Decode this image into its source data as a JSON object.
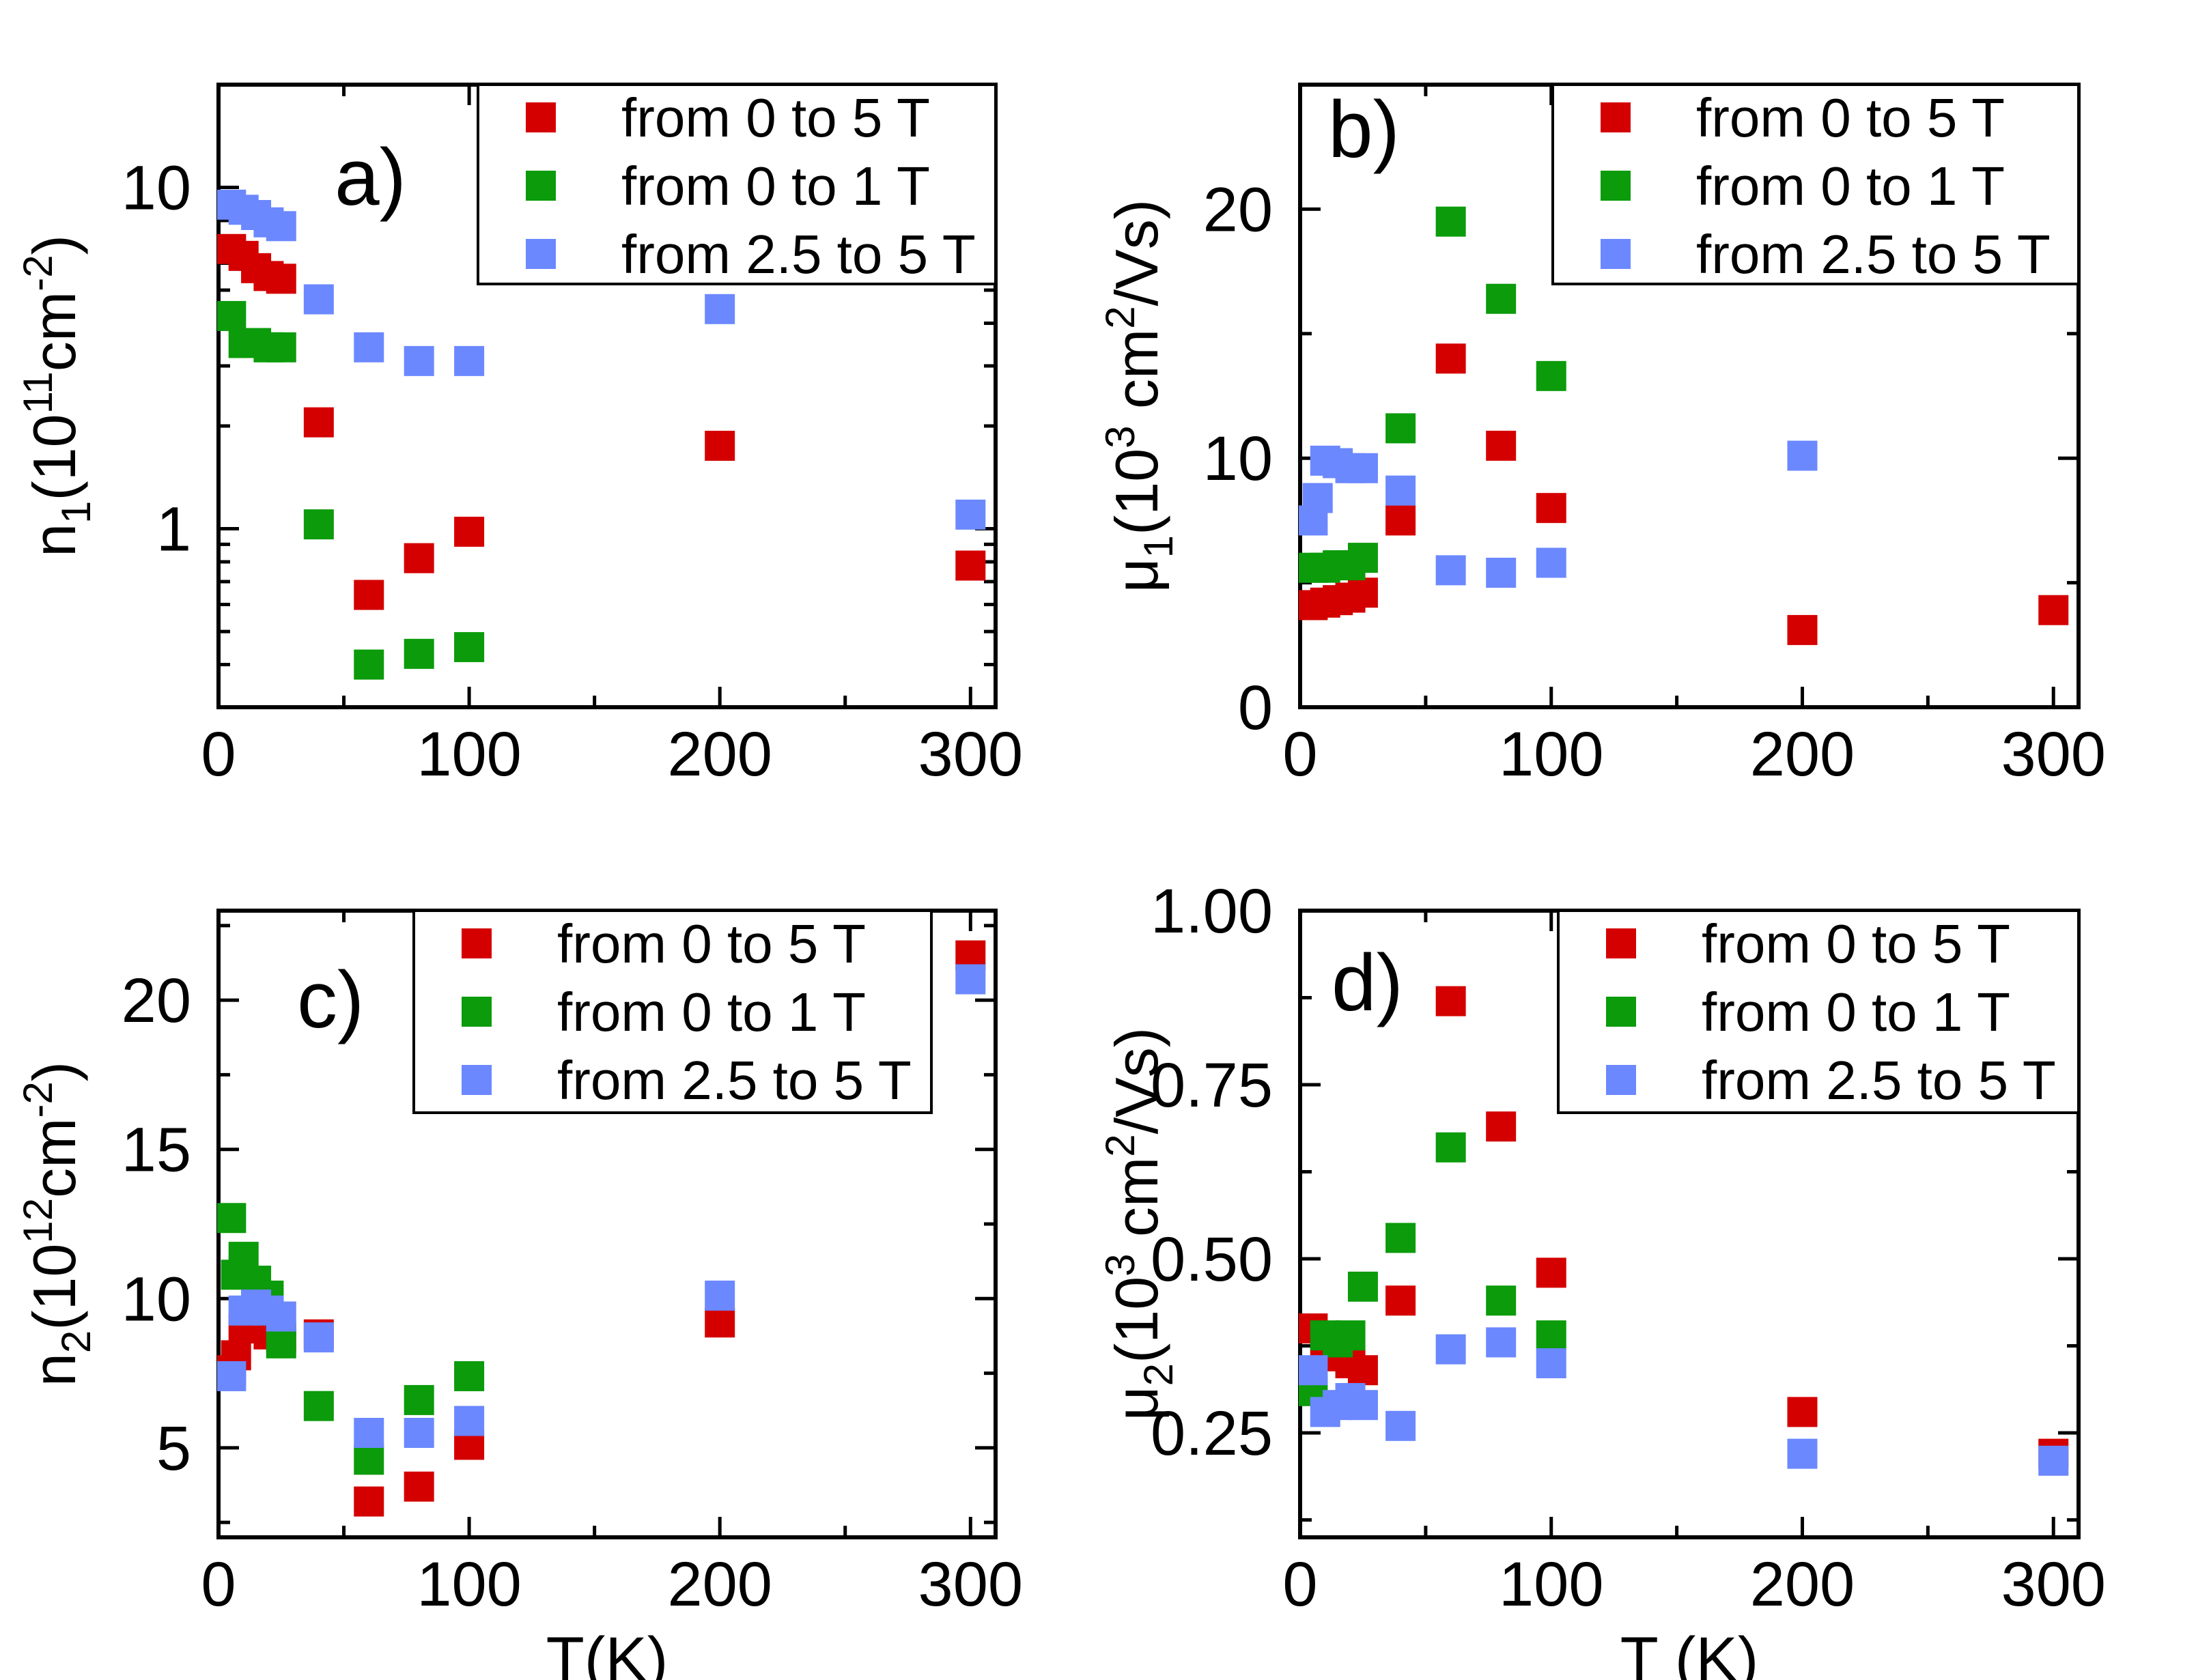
{
  "colors": {
    "from_0_to_5T": "#d40000",
    "from_0_to_1T": "#0b9b0b",
    "from_2_5_to_5T": "#6b88ff",
    "axis": "#000000"
  },
  "chart_data": [
    {
      "panel": "a",
      "type": "scatter",
      "panel_label": "a)",
      "ylabel": {
        "base": "n",
        "sub": "1",
        "pre": "(10",
        "sup": "11",
        "mid": "cm",
        "sup2": "-2",
        "post": ")"
      },
      "xlabel": "",
      "xscale": "linear",
      "yscale": "log",
      "xlim": [
        0,
        310
      ],
      "ylim": [
        0.3,
        20
      ],
      "xticks": [
        0,
        100,
        200,
        300
      ],
      "xtick_labels": [
        "0",
        "100",
        "200",
        "300"
      ],
      "yticks": [
        1,
        10
      ],
      "ytick_labels": [
        "1",
        "10"
      ],
      "legend_position": "top-right",
      "series": [
        {
          "name": "from 0 to 5 T",
          "color_key": "from_0_to_5T",
          "x": [
            5,
            10,
            15,
            20,
            25,
            40,
            60,
            80,
            100,
            200,
            300
          ],
          "y": [
            6.6,
            6.3,
            5.8,
            5.5,
            5.4,
            2.05,
            0.64,
            0.82,
            0.98,
            1.75,
            0.78
          ]
        },
        {
          "name": "from 0 to 1 T",
          "color_key": "from_0_to_1T",
          "x": [
            5,
            10,
            15,
            20,
            25,
            40,
            60,
            80,
            100
          ],
          "y": [
            4.2,
            3.5,
            3.5,
            3.4,
            3.4,
            1.03,
            0.4,
            0.43,
            0.45
          ]
        },
        {
          "name": "from 2.5 to 5 T",
          "color_key": "from_2_5_to_5T",
          "x": [
            5,
            10,
            15,
            20,
            25,
            40,
            60,
            80,
            100,
            200,
            300
          ],
          "y": [
            8.9,
            8.6,
            8.3,
            7.9,
            7.7,
            4.7,
            3.4,
            3.1,
            3.1,
            4.4,
            1.1
          ]
        }
      ]
    },
    {
      "panel": "b",
      "type": "scatter",
      "panel_label": "b)",
      "ylabel": {
        "base": "μ",
        "sub": "1",
        "pre": "(10",
        "sup": "3",
        "mid": " cm",
        "sup2": "2",
        "post": "/Vs)"
      },
      "xlabel": "",
      "xscale": "linear",
      "yscale": "linear",
      "xlim": [
        0,
        310
      ],
      "ylim": [
        0,
        25
      ],
      "xticks": [
        0,
        100,
        200,
        300
      ],
      "xtick_labels": [
        "0",
        "100",
        "200",
        "300"
      ],
      "yticks": [
        0,
        10,
        20
      ],
      "ytick_labels": [
        "0",
        "10",
        "20"
      ],
      "yminor": [
        5,
        15
      ],
      "legend_position": "top-right",
      "series": [
        {
          "name": "from 0 to 5 T",
          "color_key": "from_0_to_5T",
          "x": [
            5,
            10,
            15,
            20,
            25,
            40,
            60,
            80,
            100,
            200,
            300
          ],
          "y": [
            4.1,
            4.2,
            4.3,
            4.4,
            4.6,
            7.5,
            14.0,
            10.5,
            8.0,
            3.1,
            3.9
          ]
        },
        {
          "name": "from 0 to 1 T",
          "color_key": "from_0_to_1T",
          "x": [
            5,
            10,
            15,
            20,
            25,
            40,
            60,
            80,
            100
          ],
          "y": [
            5.6,
            5.6,
            5.7,
            5.7,
            6.0,
            11.2,
            19.5,
            16.4,
            13.3
          ]
        },
        {
          "name": "from 2.5 to 5 T",
          "color_key": "from_2_5_to_5T",
          "x": [
            5,
            7,
            10,
            15,
            20,
            25,
            40,
            60,
            80,
            100,
            200
          ],
          "y": [
            7.5,
            8.4,
            9.9,
            9.8,
            9.6,
            9.6,
            8.7,
            5.5,
            5.4,
            5.8,
            10.1
          ]
        }
      ]
    },
    {
      "panel": "c",
      "type": "scatter",
      "panel_label": "c)",
      "ylabel": {
        "base": "n",
        "sub": "2",
        "pre": "(10",
        "sup": "12",
        "mid": "cm",
        "sup2": "-2",
        "post": ")"
      },
      "xlabel": "T(K)",
      "xscale": "linear",
      "yscale": "linear",
      "xlim": [
        0,
        310
      ],
      "ylim": [
        2,
        23
      ],
      "xticks": [
        0,
        100,
        200,
        300
      ],
      "xtick_labels": [
        "0",
        "100",
        "200",
        "300"
      ],
      "yticks": [
        5,
        10,
        15,
        20
      ],
      "ytick_labels": [
        "5",
        "10",
        "15",
        "20"
      ],
      "legend_position": "top-right",
      "series": [
        {
          "name": "from 0 to 5 T",
          "color_key": "from_0_to_5T",
          "x": [
            5,
            7,
            10,
            15,
            20,
            25,
            40,
            60,
            80,
            100,
            200,
            300
          ],
          "y": [
            7.6,
            8.1,
            9.0,
            9.0,
            8.8,
            8.7,
            8.8,
            3.2,
            3.7,
            5.1,
            9.2,
            21.5
          ]
        },
        {
          "name": "from 0 to 1 T",
          "color_key": "from_0_to_1T",
          "x": [
            5,
            7,
            10,
            15,
            20,
            25,
            40,
            60,
            80,
            100
          ],
          "y": [
            12.7,
            10.8,
            11.4,
            10.6,
            10.1,
            8.5,
            6.4,
            4.6,
            6.6,
            7.4
          ]
        },
        {
          "name": "from 2.5 to 5 T",
          "color_key": "from_2_5_to_5T",
          "x": [
            5,
            10,
            15,
            20,
            25,
            40,
            60,
            80,
            100,
            200,
            300
          ],
          "y": [
            7.4,
            9.6,
            9.8,
            9.6,
            9.4,
            8.7,
            5.5,
            5.5,
            5.9,
            10.1,
            20.7
          ]
        }
      ]
    },
    {
      "panel": "d",
      "type": "scatter",
      "panel_label": "d)",
      "ylabel": {
        "base": "μ",
        "sub": "2",
        "pre": "(10",
        "sup": "3",
        "mid": " cm",
        "sup2": "2",
        "post": "/Vs)"
      },
      "xlabel": "T (K)",
      "xscale": "linear",
      "yscale": "linear",
      "xlim": [
        0,
        310
      ],
      "ylim": [
        0.1,
        1.0
      ],
      "xticks": [
        0,
        100,
        200,
        300
      ],
      "xtick_labels": [
        "0",
        "100",
        "200",
        "300"
      ],
      "yticks": [
        0.25,
        0.5,
        0.75,
        1.0
      ],
      "ytick_labels": [
        "0.25",
        "0.50",
        "0.75",
        "1.00"
      ],
      "legend_position": "top-right",
      "series": [
        {
          "name": "from 0 to 5 T",
          "color_key": "from_0_to_5T",
          "x": [
            5,
            10,
            15,
            20,
            25,
            40,
            60,
            80,
            100,
            200,
            300
          ],
          "y": [
            0.4,
            0.37,
            0.36,
            0.35,
            0.34,
            0.44,
            0.87,
            0.69,
            0.48,
            0.28,
            0.22
          ]
        },
        {
          "name": "from 0 to 1 T",
          "color_key": "from_0_to_1T",
          "x": [
            5,
            10,
            15,
            20,
            25,
            40,
            60,
            80,
            100
          ],
          "y": [
            0.31,
            0.39,
            0.38,
            0.39,
            0.46,
            0.53,
            0.66,
            0.44,
            0.39
          ]
        },
        {
          "name": "from 2.5 to 5 T",
          "color_key": "from_2_5_to_5T",
          "x": [
            5,
            10,
            15,
            20,
            25,
            40,
            60,
            80,
            100,
            200,
            300
          ],
          "y": [
            0.34,
            0.28,
            0.29,
            0.3,
            0.29,
            0.26,
            0.37,
            0.38,
            0.35,
            0.22,
            0.21
          ]
        }
      ]
    }
  ]
}
